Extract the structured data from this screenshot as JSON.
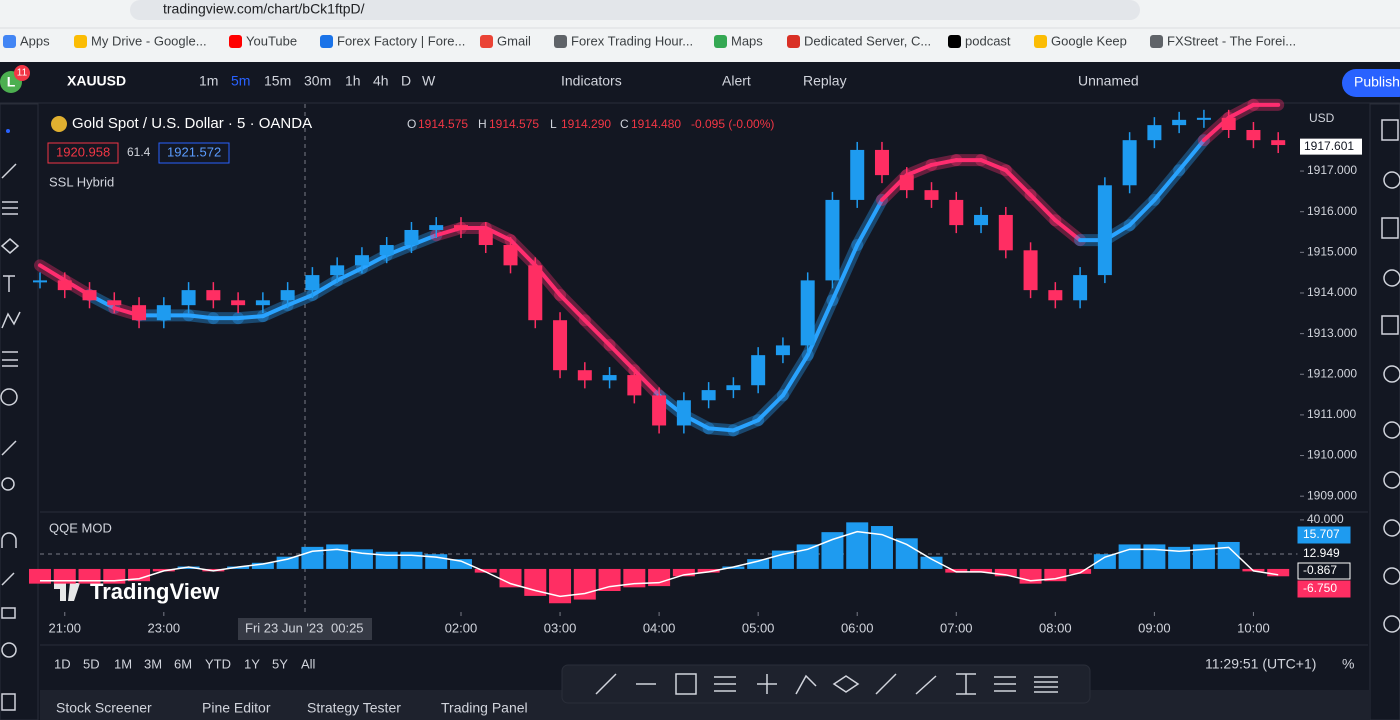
{
  "browser": {
    "url": "tradingview.com/chart/bCk1ftpD/",
    "bookmarks": [
      "Apps",
      "My Drive - Google...",
      "YouTube",
      "Forex Factory | Fore...",
      "Gmail",
      "Forex Trading Hour...",
      "Maps",
      "Dedicated Server, C...",
      "podcast",
      "Google Keep",
      "FXStreet - The Forei..."
    ]
  },
  "toolbar": {
    "avatar": "L",
    "badge": "11",
    "symbol": "XAUUSD",
    "intervals": [
      "1m",
      "5m",
      "15m",
      "30m",
      "1h",
      "4h",
      "D",
      "W"
    ],
    "active_interval": "5m",
    "indicators": "Indicators",
    "alert": "Alert",
    "replay": "Replay",
    "layout_name": "Unnamed",
    "publish": "Publish"
  },
  "legend": {
    "title": "Gold Spot / U.S. Dollar · 5 · OANDA",
    "o_key": "O",
    "o": "1914.575",
    "h_key": "H",
    "h": "1914.575",
    "l_key": "L",
    "l": "1914.290",
    "c_key": "C",
    "c": "1914.480",
    "change": "-0.095 (-0.00%)",
    "sell": "1920.958",
    "spread": "61.4",
    "buy": "1921.572",
    "indicator1": "SSL Hybrid",
    "indicator2": "QQE MOD"
  },
  "chart_data": [
    {
      "type": "candlestick",
      "currency": "USD",
      "up_color": "#1e9bf0",
      "down_color": "#ff2e63",
      "x": [
        -0.25,
        0,
        0.25,
        0.5,
        0.75,
        1,
        1.25,
        1.5,
        1.75,
        2,
        2.25,
        2.5,
        2.75,
        3,
        3.25,
        3.5,
        3.75,
        4,
        4.25,
        4.5,
        4.75,
        5,
        5.25,
        5.5,
        5.75,
        6,
        6.25,
        6.5,
        6.75,
        7,
        7.25,
        7.5,
        7.75,
        8,
        8.25,
        8.5,
        8.75,
        9,
        9.25,
        9.5,
        9.75,
        10,
        10.25,
        10.5,
        10.75,
        11,
        11.25,
        11.5,
        11.75,
        12,
        12.25
      ],
      "close": [
        1914.31,
        1914.07,
        1913.82,
        1913.7,
        1913.33,
        1913.7,
        1914.07,
        1913.82,
        1913.7,
        1913.82,
        1914.07,
        1914.44,
        1914.68,
        1914.93,
        1915.18,
        1915.55,
        1915.67,
        1915.55,
        1915.18,
        1914.68,
        1913.33,
        1912.1,
        1911.85,
        1911.98,
        1911.48,
        1910.74,
        1911.36,
        1911.61,
        1911.73,
        1912.47,
        1912.71,
        1914.31,
        1916.29,
        1917.52,
        1916.9,
        1916.53,
        1916.29,
        1915.67,
        1915.92,
        1915.05,
        1914.07,
        1913.82,
        1914.44,
        1916.65,
        1917.76,
        1918.13,
        1918.26,
        1918.31,
        1918.01,
        1917.76,
        1917.64
      ],
      "baseline": [
        1914.68,
        1914.31,
        1913.95,
        1913.63,
        1913.45,
        1913.45,
        1913.45,
        1913.38,
        1913.38,
        1913.43,
        1913.7,
        1913.95,
        1914.31,
        1914.61,
        1914.93,
        1915.18,
        1915.42,
        1915.6,
        1915.6,
        1915.3,
        1914.68,
        1913.95,
        1913.33,
        1912.72,
        1912.1,
        1911.48,
        1910.99,
        1910.67,
        1910.62,
        1910.87,
        1911.48,
        1912.47,
        1913.82,
        1915.18,
        1916.29,
        1916.9,
        1917.15,
        1917.27,
        1917.27,
        1917.02,
        1916.41,
        1915.79,
        1915.3,
        1915.3,
        1915.67,
        1916.29,
        1917.02,
        1917.76,
        1918.31,
        1918.63,
        1918.63
      ],
      "xlim": [
        -0.25,
        12.47
      ],
      "xticks": [
        {
          "value": 0,
          "label": "21:00"
        },
        {
          "value": 1,
          "label": "23:00"
        },
        {
          "value": 4,
          "label": "02:00"
        },
        {
          "value": 5,
          "label": "03:00"
        },
        {
          "value": 6,
          "label": "04:00"
        },
        {
          "value": 7,
          "label": "05:00"
        },
        {
          "value": 8,
          "label": "06:00"
        },
        {
          "value": 9,
          "label": "07:00"
        },
        {
          "value": 10,
          "label": "08:00"
        },
        {
          "value": 11,
          "label": "09:00"
        },
        {
          "value": 12,
          "label": "10:00"
        }
      ],
      "ylim": [
        1908.66,
        1918.65
      ],
      "yticks": [
        {
          "value": 1909,
          "label": "1909.000"
        },
        {
          "value": 1910,
          "label": "1910.000"
        },
        {
          "value": 1911,
          "label": "1911.000"
        },
        {
          "value": 1912,
          "label": "1912.000"
        },
        {
          "value": 1913,
          "label": "1913.000"
        },
        {
          "value": 1914,
          "label": "1914.000"
        },
        {
          "value": 1915,
          "label": "1915.000"
        },
        {
          "value": 1916,
          "label": "1916.000"
        },
        {
          "value": 1917,
          "label": "1917.000"
        }
      ],
      "last_price": {
        "value": 1917.601,
        "label": "1917.601"
      }
    },
    {
      "type": "bar",
      "pos_color": "#1e9bf0",
      "neg_color": "#ff2e63",
      "x": [
        -0.25,
        0,
        0.25,
        0.5,
        0.75,
        1,
        1.25,
        1.5,
        1.75,
        2,
        2.25,
        2.5,
        2.75,
        3,
        3.25,
        3.5,
        3.75,
        4,
        4.25,
        4.5,
        4.75,
        5,
        5.25,
        5.5,
        5.75,
        6,
        6.25,
        6.5,
        6.75,
        7,
        7.25,
        7.5,
        7.75,
        8,
        8.25,
        8.5,
        8.75,
        9,
        9.25,
        9.5,
        9.75,
        10,
        10.25,
        10.5,
        10.75,
        11,
        11.25,
        11.5,
        11.75,
        12,
        12.25
      ],
      "values": [
        -12,
        -12,
        -12,
        -12,
        -10,
        -2,
        2,
        -2,
        2,
        5,
        10,
        18,
        20,
        16,
        14,
        14,
        12,
        8,
        -3,
        -15,
        -22,
        -28,
        -25,
        -18,
        -15,
        -14,
        -6,
        -3,
        2,
        8,
        15,
        20,
        30,
        38,
        35,
        25,
        10,
        -3,
        -3,
        -6,
        -12,
        -10,
        -4,
        12,
        20,
        20,
        18,
        20,
        22,
        -2,
        -6
      ],
      "ylim": [
        -33.5,
        44
      ],
      "yticks": [
        {
          "value": 40,
          "label": "40.000"
        }
      ],
      "badges": [
        {
          "label": "15.707",
          "color": "#1e9bf0"
        },
        {
          "label": "12.949",
          "color": "#131722"
        },
        {
          "label": "-0.867",
          "color": "#ffffff"
        },
        {
          "label": "-6.750",
          "color": "#ff2e63"
        }
      ]
    }
  ],
  "crosshair": {
    "date": "Fri 23 Jun '23",
    "time": "00:25"
  },
  "watermark": "TradingView",
  "ranges": [
    "1D",
    "5D",
    "1M",
    "3M",
    "6M",
    "YTD",
    "1Y",
    "5Y",
    "All"
  ],
  "clock": "11:29:51 (UTC+1)",
  "percent": "%",
  "tabs": [
    "Stock Screener",
    "Pine Editor",
    "Strategy Tester",
    "Trading Panel"
  ]
}
